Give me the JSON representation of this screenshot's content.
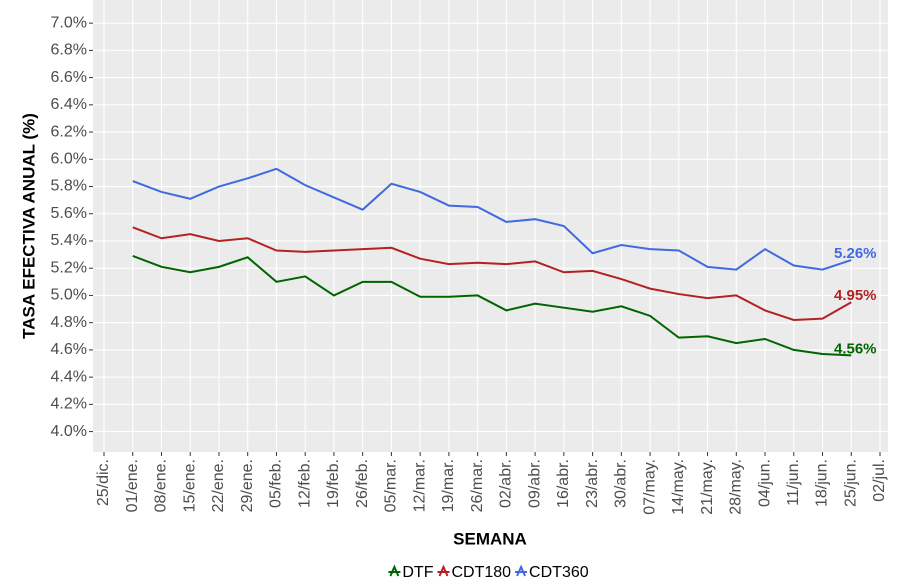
{
  "chart_data": {
    "type": "line",
    "x_label": "SEMANA",
    "y_label": "TASA EFECTIVA ANUAL (%)",
    "categories": [
      "25/dic.",
      "01/ene.",
      "08/ene.",
      "15/ene.",
      "22/ene.",
      "29/ene.",
      "05/feb.",
      "12/feb.",
      "19/feb.",
      "26/feb.",
      "05/mar.",
      "12/mar.",
      "19/mar.",
      "26/mar.",
      "02/abr.",
      "09/abr.",
      "16/abr.",
      "23/abr.",
      "30/abr.",
      "07/may.",
      "14/may.",
      "21/may.",
      "28/may.",
      "04/jun.",
      "11/jun.",
      "18/jun.",
      "25/jun.",
      "02/jul."
    ],
    "series": [
      {
        "name": "DTF",
        "color": "#006400",
        "values": [
          null,
          5.29,
          5.21,
          5.17,
          5.21,
          5.28,
          5.1,
          5.14,
          5.0,
          5.1,
          5.1,
          4.99,
          4.99,
          5.0,
          4.89,
          4.94,
          4.91,
          4.88,
          4.92,
          4.85,
          4.69,
          4.7,
          4.65,
          4.68,
          4.6,
          4.57,
          4.56,
          null
        ],
        "value_labels": [
          null,
          null,
          null,
          null,
          null,
          null,
          null,
          null,
          null,
          null,
          null,
          null,
          null,
          null,
          null,
          null,
          null,
          null,
          null,
          null,
          null,
          null,
          null,
          null,
          null,
          null,
          "4.56%",
          null
        ]
      },
      {
        "name": "CDT180",
        "color": "#b22222",
        "values": [
          null,
          5.5,
          5.42,
          5.45,
          5.4,
          5.42,
          5.33,
          5.32,
          5.33,
          5.34,
          5.35,
          5.27,
          5.23,
          5.24,
          5.23,
          5.25,
          5.17,
          5.18,
          5.12,
          5.05,
          5.01,
          4.98,
          5.0,
          4.89,
          4.82,
          4.83,
          4.95,
          null
        ],
        "value_labels": [
          null,
          null,
          null,
          null,
          null,
          null,
          null,
          null,
          null,
          null,
          null,
          null,
          null,
          null,
          null,
          null,
          null,
          null,
          null,
          null,
          null,
          null,
          null,
          null,
          null,
          null,
          "4.95%",
          null
        ]
      },
      {
        "name": "CDT360",
        "color": "#4169e1",
        "values": [
          null,
          5.84,
          5.76,
          5.71,
          5.8,
          5.86,
          5.93,
          5.81,
          5.72,
          5.63,
          5.82,
          5.76,
          5.66,
          5.65,
          5.54,
          5.56,
          5.51,
          5.31,
          5.37,
          5.34,
          5.33,
          5.21,
          5.19,
          5.34,
          5.22,
          5.19,
          5.26,
          null
        ],
        "value_labels": [
          null,
          null,
          null,
          null,
          null,
          null,
          null,
          null,
          null,
          null,
          null,
          null,
          null,
          null,
          null,
          null,
          null,
          null,
          null,
          null,
          null,
          null,
          null,
          null,
          null,
          null,
          "5.26%",
          null
        ]
      }
    ],
    "ylim": [
      3.85,
      7.17
    ],
    "yticks": [
      {
        "value": 4.0,
        "label": "4.0%"
      },
      {
        "value": 4.2,
        "label": "4.2%"
      },
      {
        "value": 4.4,
        "label": "4.4%"
      },
      {
        "value": 4.6,
        "label": "4.6%"
      },
      {
        "value": 4.8,
        "label": "4.8%"
      },
      {
        "value": 5.0,
        "label": "5.0%"
      },
      {
        "value": 5.2,
        "label": "5.2%"
      },
      {
        "value": 5.4,
        "label": "5.4%"
      },
      {
        "value": 5.6,
        "label": "5.6%"
      },
      {
        "value": 5.8,
        "label": "5.8%"
      },
      {
        "value": 6.0,
        "label": "6.0%"
      },
      {
        "value": 6.2,
        "label": "6.2%"
      },
      {
        "value": 6.4,
        "label": "6.4%"
      },
      {
        "value": 6.6,
        "label": "6.6%"
      },
      {
        "value": 6.8,
        "label": "6.8%"
      },
      {
        "value": 7.0,
        "label": "7.0%"
      }
    ],
    "grid": true,
    "legend": "bottom"
  }
}
